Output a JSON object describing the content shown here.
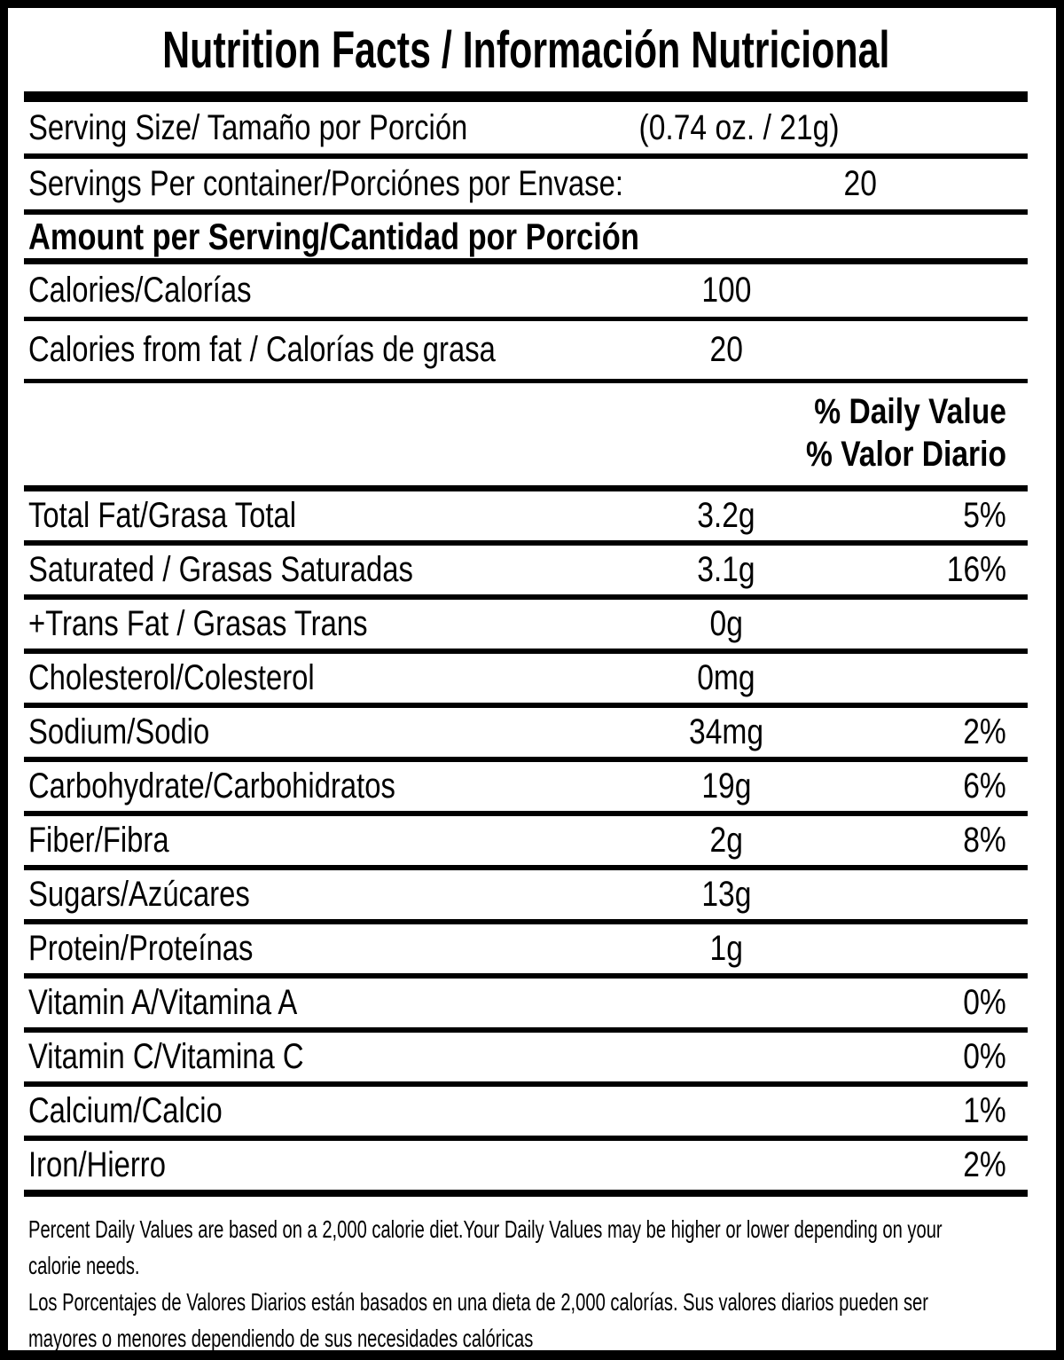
{
  "title": "Nutrition Facts / Información Nutricional",
  "serving": {
    "label": "Serving Size/ Tamaño por Porción",
    "value": "(0.74 oz. / 21g)"
  },
  "servings_per_container": {
    "label": "Servings Per container/Porciónes por Envase:",
    "value": "20"
  },
  "section_heading": "Amount per Serving/Cantidad por Porción",
  "calories": {
    "label": "Calories/Calorías",
    "value": "100"
  },
  "calories_from_fat": {
    "label": "Calories from fat / Calorías de grasa",
    "value": "20"
  },
  "daily_value_header_en": "% Daily Value",
  "daily_value_header_es": "% Valor Diario",
  "nutrients": [
    {
      "name": "Total Fat/Grasa Total",
      "amount": "3.2g",
      "daily_value": "5%"
    },
    {
      "name": "Saturated / Grasas Saturadas",
      "amount": "3.1g",
      "daily_value": "16%"
    },
    {
      "name": "+Trans Fat / Grasas Trans",
      "amount": "0g",
      "daily_value": ""
    },
    {
      "name": "Cholesterol/Colesterol",
      "amount": "0mg",
      "daily_value": ""
    },
    {
      "name": "Sodium/Sodio",
      "amount": "34mg",
      "daily_value": "2%"
    },
    {
      "name": "Carbohydrate/Carbohidratos",
      "amount": "19g",
      "daily_value": "6%"
    },
    {
      "name": "Fiber/Fibra",
      "amount": "2g",
      "daily_value": "8%"
    },
    {
      "name": "Sugars/Azúcares",
      "amount": "13g",
      "daily_value": ""
    },
    {
      "name": "Protein/Proteínas",
      "amount": "1g",
      "daily_value": ""
    },
    {
      "name": "Vitamin A/Vitamina A",
      "amount": "",
      "daily_value": "0%"
    },
    {
      "name": "Vitamin C/Vitamina C",
      "amount": "",
      "daily_value": "0%"
    },
    {
      "name": "Calcium/Calcio",
      "amount": "",
      "daily_value": "1%"
    },
    {
      "name": "Iron/Hierro",
      "amount": "",
      "daily_value": "2%"
    }
  ],
  "footnote_lines": [
    "Percent Daily Values are based on a 2,000 calorie diet.Your Daily Values may be higher or lower depending on your",
    "calorie needs.",
    "Los Porcentajes de Valores Diarios están basados en una dieta de 2,000 calorías. Sus valores diarios pueden ser",
    "mayores o menores dependiendo de sus necesidades calóricas"
  ],
  "colors": {
    "ink": "#000000",
    "paper": "#ffffff"
  }
}
